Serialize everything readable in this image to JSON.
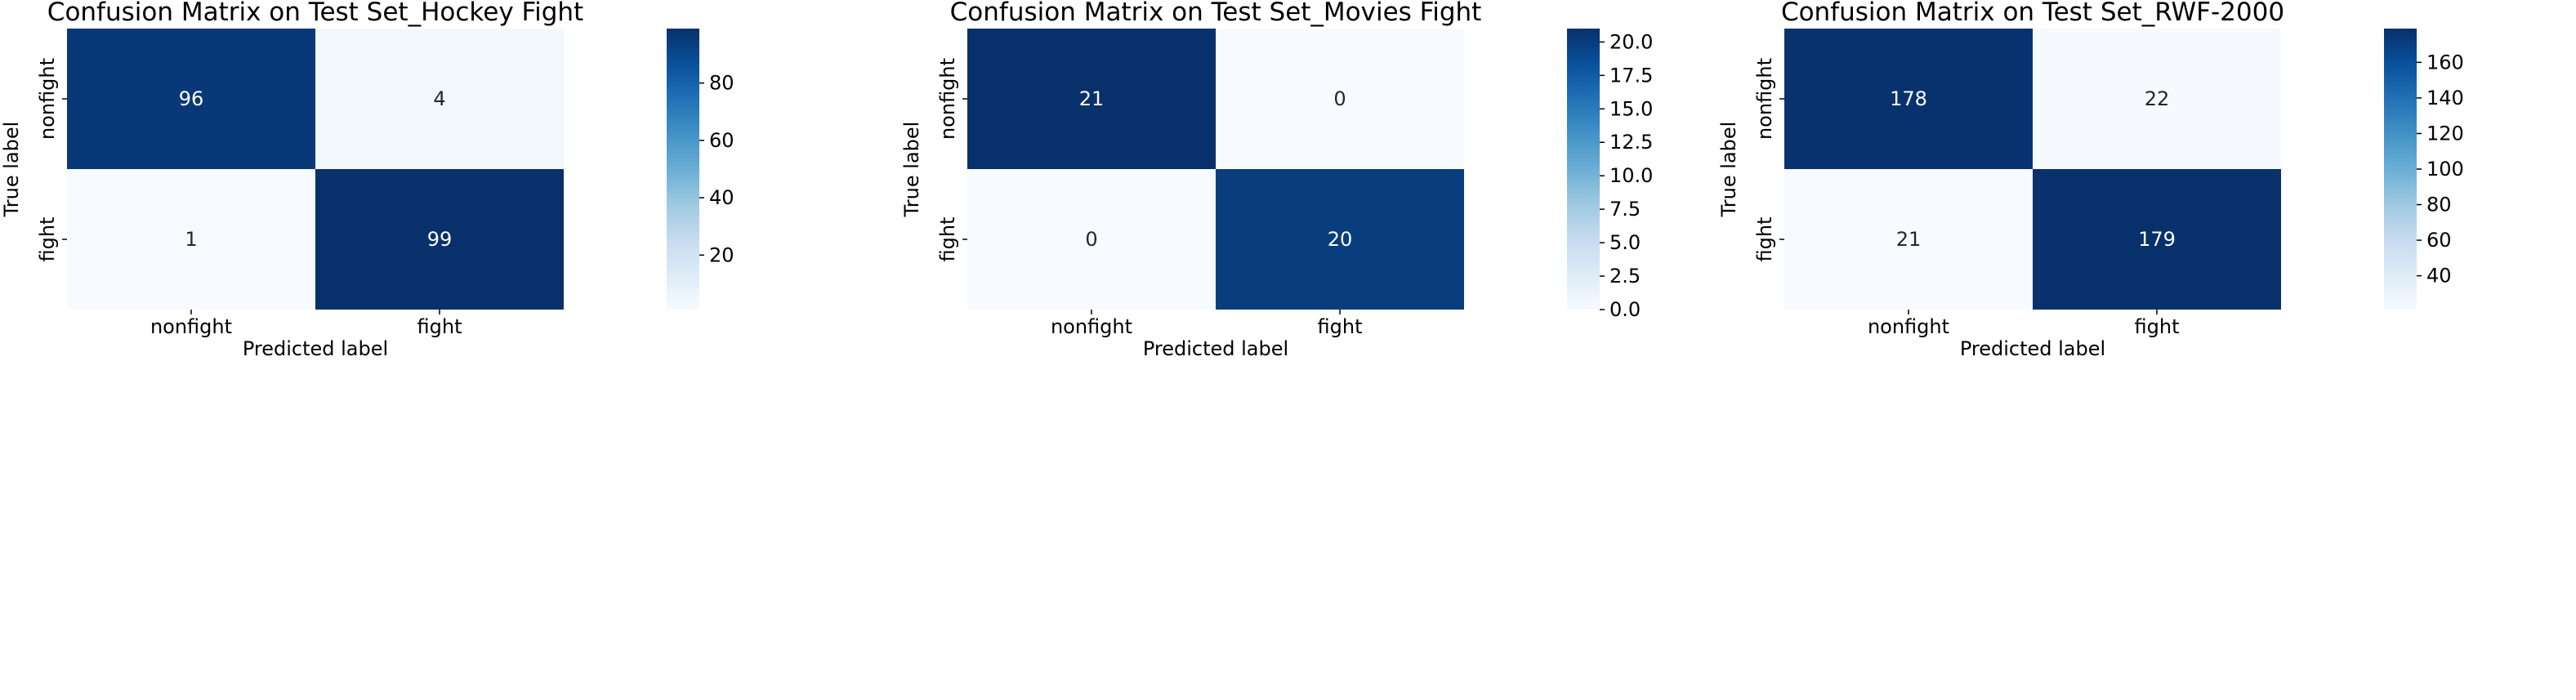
{
  "chart_data": [
    {
      "type": "heatmap",
      "title": "Confusion Matrix on Test Set_Hockey Fight",
      "xlabel": "Predicted label",
      "ylabel": "True label",
      "x_categories": [
        "nonfight",
        "fight"
      ],
      "y_categories": [
        "nonfight",
        "fight"
      ],
      "values": [
        [
          96,
          4
        ],
        [
          1,
          99
        ]
      ],
      "colorbar": {
        "min": 1,
        "max": 99,
        "ticks": [
          20,
          40,
          60,
          80
        ]
      },
      "colormap": "Blues"
    },
    {
      "type": "heatmap",
      "title": "Confusion Matrix on Test Set_Movies Fight",
      "xlabel": "Predicted label",
      "ylabel": "True label",
      "x_categories": [
        "nonfight",
        "fight"
      ],
      "y_categories": [
        "nonfight",
        "fight"
      ],
      "values": [
        [
          21,
          0
        ],
        [
          0,
          20
        ]
      ],
      "colorbar": {
        "min": 0,
        "max": 21,
        "ticks": [
          "0.0",
          "2.5",
          "5.0",
          "7.5",
          "10.0",
          "12.5",
          "15.0",
          "17.5",
          "20.0"
        ]
      },
      "colormap": "Blues"
    },
    {
      "type": "heatmap",
      "title": "Confusion Matrix on Test Set_RWF-2000",
      "xlabel": "Predicted label",
      "ylabel": "True label",
      "x_categories": [
        "nonfight",
        "fight"
      ],
      "y_categories": [
        "nonfight",
        "fight"
      ],
      "values": [
        [
          178,
          22
        ],
        [
          21,
          179
        ]
      ],
      "colorbar": {
        "min": 21,
        "max": 179,
        "ticks": [
          40,
          60,
          80,
          100,
          120,
          140,
          160
        ]
      },
      "colormap": "Blues"
    }
  ]
}
